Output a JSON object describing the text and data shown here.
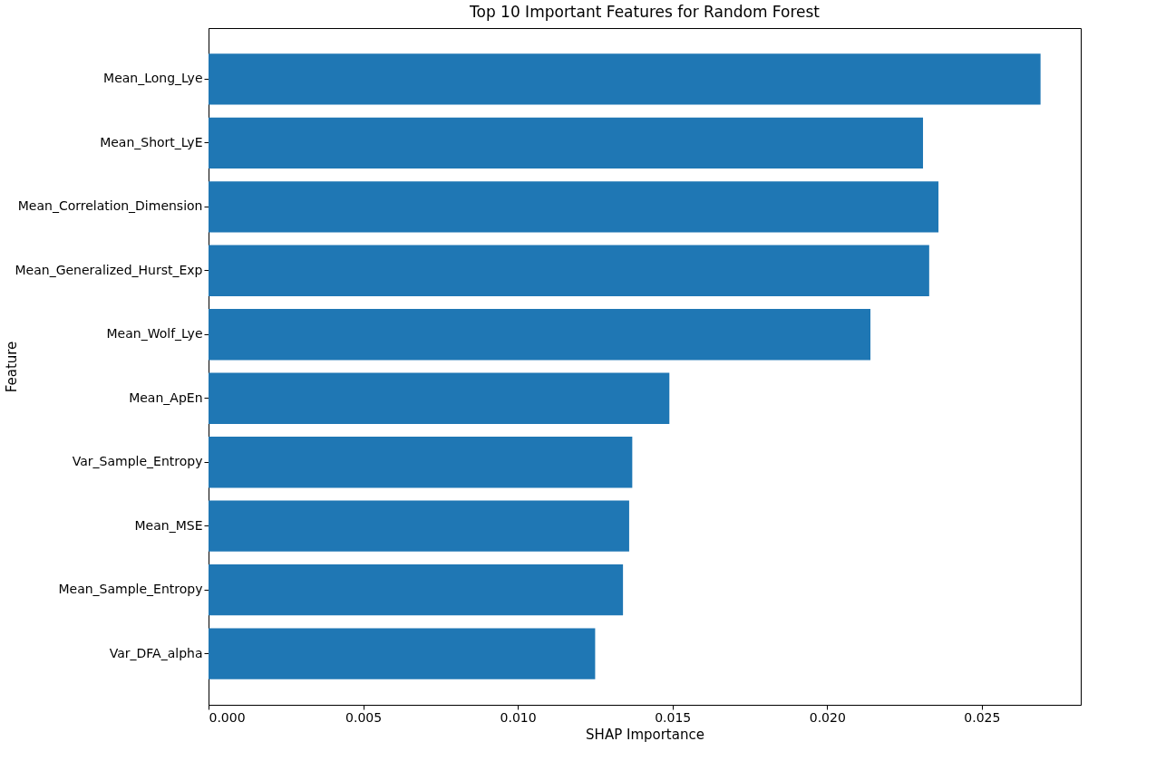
{
  "chart_data": {
    "type": "bar",
    "orientation": "horizontal",
    "title": "Top 10 Important Features for Random Forest",
    "xlabel": "SHAP Importance",
    "ylabel": "Feature",
    "categories": [
      "Mean_Long_Lye",
      "Mean_Short_LyE",
      "Mean_Correlation_Dimension",
      "Mean_Generalized_Hurst_Exp",
      "Mean_Wolf_Lye",
      "Mean_ApEn",
      "Var_Sample_Entropy",
      "Mean_MSE",
      "Mean_Sample_Entropy",
      "Var_DFA_alpha"
    ],
    "values": [
      0.0269,
      0.0231,
      0.0236,
      0.0233,
      0.0214,
      0.0149,
      0.0137,
      0.0136,
      0.0134,
      0.0125
    ],
    "color": "#1f77b4",
    "xlim": [
      0,
      0.0282
    ],
    "xticks": [
      {
        "value": 0,
        "label": "0.000"
      },
      {
        "value": 0.005,
        "label": "0.005"
      },
      {
        "value": 0.01,
        "label": "0.010"
      },
      {
        "value": 0.015,
        "label": "0.015"
      },
      {
        "value": 0.02,
        "label": "0.020"
      },
      {
        "value": 0.025,
        "label": "0.025"
      }
    ],
    "grid": false
  }
}
